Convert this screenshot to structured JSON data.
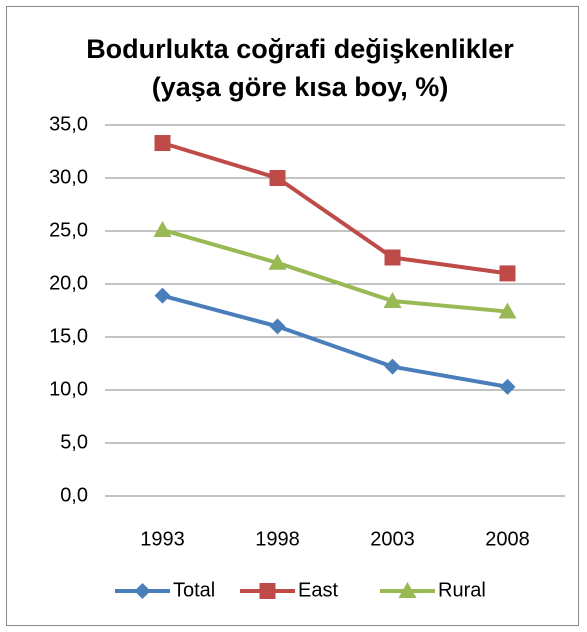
{
  "chart_data": {
    "type": "line",
    "title": "Bodurlukta coğrafi değişkenlikler (yaşa göre kısa boy, %)",
    "categories": [
      "1993",
      "1998",
      "2003",
      "2008"
    ],
    "series": [
      {
        "name": "Total",
        "color": "#4a7ebb",
        "marker": "diamond",
        "values": [
          18.9,
          16.0,
          12.2,
          10.3
        ]
      },
      {
        "name": "East",
        "color": "#be4b48",
        "marker": "square",
        "values": [
          33.3,
          30.0,
          22.5,
          21.0
        ]
      },
      {
        "name": "Rural",
        "color": "#98b954",
        "marker": "triangle",
        "values": [
          25.1,
          22.0,
          18.4,
          17.4
        ]
      }
    ],
    "ylim": [
      0,
      35
    ],
    "yticks": [
      {
        "value": 0,
        "label": "0,0"
      },
      {
        "value": 5,
        "label": "5,0"
      },
      {
        "value": 10,
        "label": "10,0"
      },
      {
        "value": 15,
        "label": "15,0"
      },
      {
        "value": 20,
        "label": "20,0"
      },
      {
        "value": 25,
        "label": "25,0"
      },
      {
        "value": 30,
        "label": "30,0"
      },
      {
        "value": 35,
        "label": "35,0"
      }
    ],
    "grid": true,
    "legend": "bottom"
  }
}
